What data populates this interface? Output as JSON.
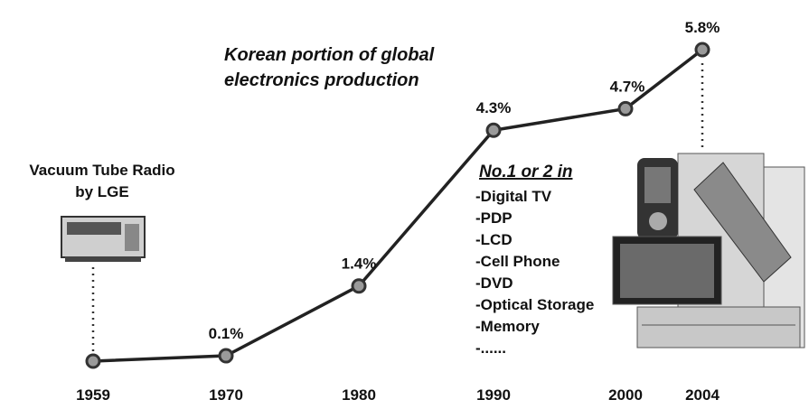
{
  "chart_data": {
    "type": "line",
    "title": [
      "Korean portion of global",
      "electronics production"
    ],
    "categories": [
      "1959",
      "1970",
      "1980",
      "1990",
      "2000",
      "2004"
    ],
    "values": [
      0,
      0.1,
      1.4,
      4.3,
      4.7,
      5.8
    ],
    "value_labels": [
      null,
      "0.1%",
      "1.4%",
      "4.3%",
      "4.7%",
      "5.8%"
    ],
    "color": "#222222",
    "annotations": {
      "radio": [
        "Vacuum Tube Radio",
        "by LGE"
      ]
    },
    "ranking": {
      "heading": "No.1 or 2 in",
      "items": [
        "-Digital TV",
        "-PDP",
        "-LCD",
        "-Cell Phone",
        "-DVD",
        "-Optical Storage",
        "-Memory",
        "-......"
      ]
    }
  }
}
